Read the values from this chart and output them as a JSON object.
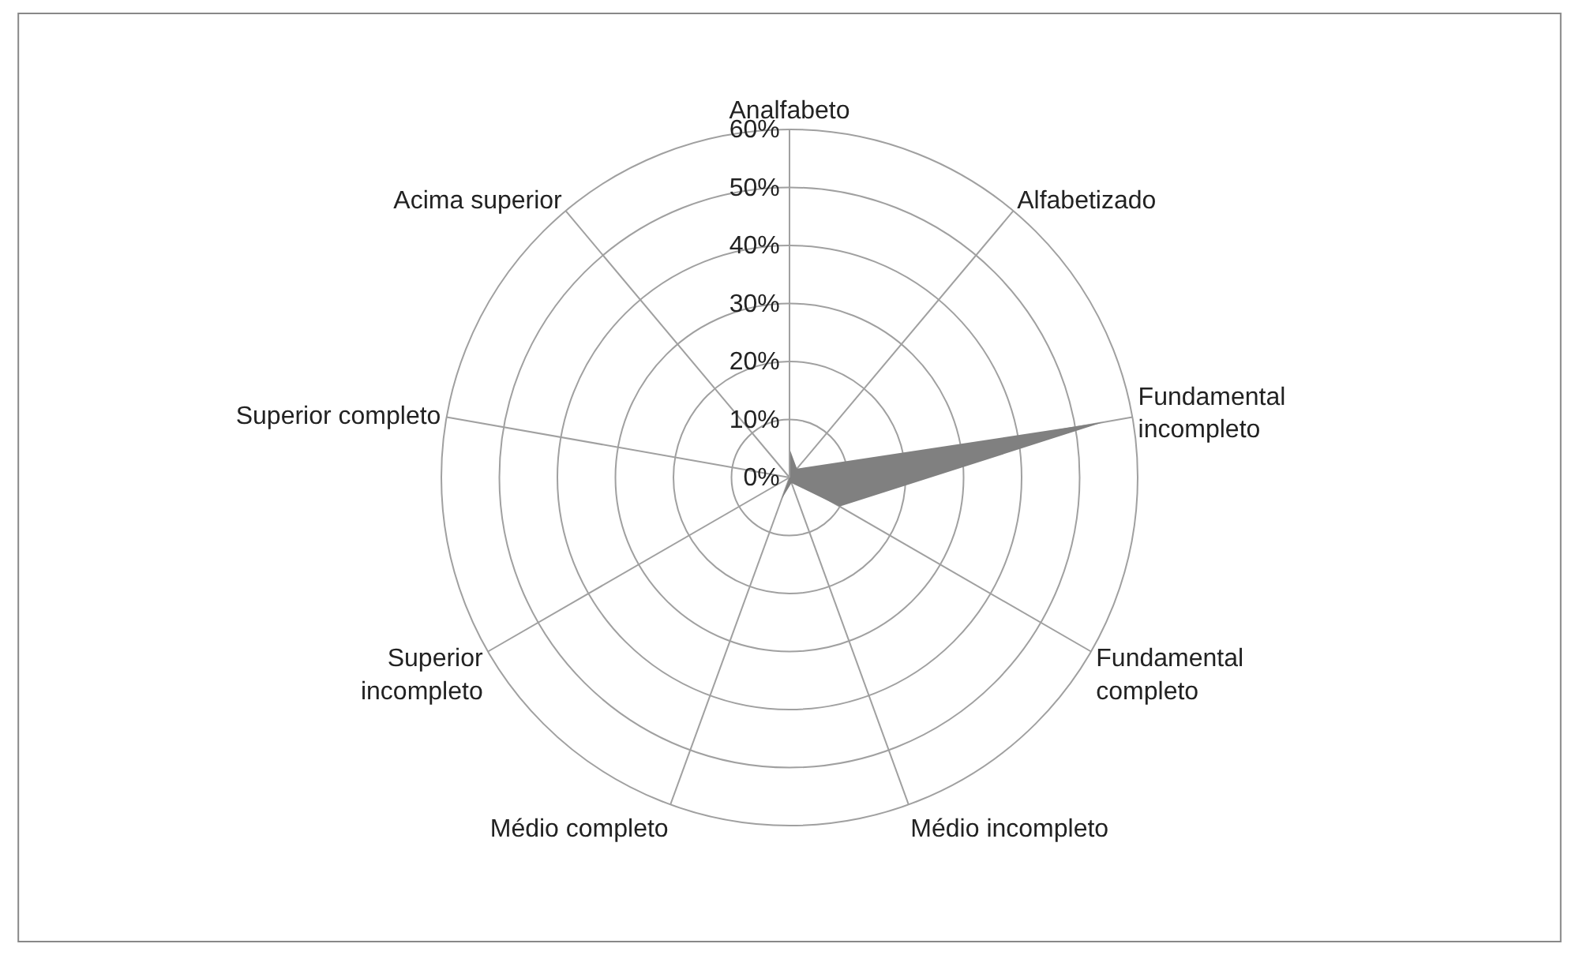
{
  "chart_data": {
    "type": "radar",
    "categories": [
      "Analfabeto",
      "Alfabetizado",
      "Fundamental incompleto",
      "Fundamental completo",
      "Médio incompleto",
      "Médio completo",
      "Superior incompleto",
      "Superior completo",
      "Acima superior"
    ],
    "series": [
      {
        "color": "#808080",
        "values": [
          5,
          2,
          55,
          10,
          1,
          4,
          0,
          0,
          0
        ]
      }
    ],
    "ylim": [
      0,
      60
    ],
    "yticks": [
      {
        "value": 0,
        "label": "0%"
      },
      {
        "value": 10,
        "label": "10%"
      },
      {
        "value": 20,
        "label": "20%"
      },
      {
        "value": 30,
        "label": "30%"
      },
      {
        "value": 40,
        "label": "40%"
      },
      {
        "value": 50,
        "label": "50%"
      },
      {
        "value": 60,
        "label": "60%"
      }
    ]
  }
}
